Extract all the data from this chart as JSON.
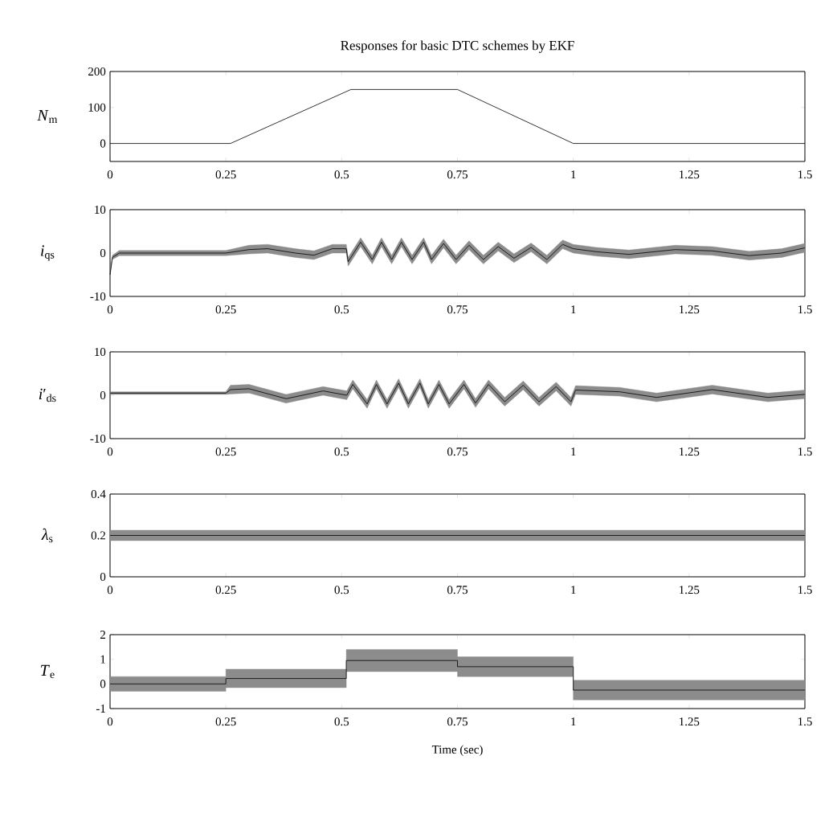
{
  "chart_data": [
    {
      "type": "line",
      "title": "Responses for basic DTC schemes by EKF",
      "ylabel": "*N*$_{m}$",
      "xlim": [
        0,
        1.5
      ],
      "xticks": [
        0,
        0.25,
        0.5,
        0.75,
        1,
        1.25,
        1.5
      ],
      "ylim": [
        -50,
        200
      ],
      "yticks": [
        0,
        100,
        200
      ],
      "x": [
        0,
        0.26,
        0.52,
        0.75,
        1.0,
        1.5
      ],
      "series": [
        {
          "color": "#000000",
          "values": [
            0,
            0,
            150,
            150,
            0,
            0
          ]
        }
      ]
    },
    {
      "type": "line",
      "ylabel": "*i*$_{qs}$",
      "xlim": [
        0,
        1.5
      ],
      "xticks": [
        0,
        0.25,
        0.5,
        0.75,
        1,
        1.25,
        1.5
      ],
      "ylim": [
        -10,
        10
      ],
      "yticks": [
        -10,
        0,
        10
      ],
      "x": [
        0,
        0.005,
        0.02,
        0.25,
        0.3,
        0.34,
        0.4,
        0.44,
        0.48,
        0.51,
        0.514,
        0.541,
        0.566,
        0.586,
        0.608,
        0.629,
        0.652,
        0.677,
        0.694,
        0.72,
        0.747,
        0.775,
        0.806,
        0.838,
        0.872,
        0.909,
        0.943,
        0.977,
        1.0,
        1.05,
        1.12,
        1.22,
        1.3,
        1.38,
        1.45,
        1.5
      ],
      "series": [
        {
          "color": "#000000",
          "values": [
            -5,
            -1,
            0,
            0,
            0.8,
            1,
            0,
            -0.5,
            1,
            1,
            -2,
            2.5,
            -1.5,
            2.5,
            -1.5,
            2.5,
            -1.5,
            2.5,
            -1.5,
            2.2,
            -1.5,
            1.8,
            -1.5,
            1.5,
            -1.2,
            1.3,
            -1.5,
            2,
            1,
            0.3,
            -0.3,
            0.8,
            0.5,
            -0.6,
            0,
            1.2
          ],
          "lower": [
            -5,
            -1.5,
            -0.6,
            -0.6,
            -0.2,
            0,
            -1,
            -1.5,
            0,
            0,
            -3,
            1.5,
            -2.5,
            1.5,
            -2.5,
            1.5,
            -2.5,
            1.5,
            -2.5,
            1.2,
            -2.5,
            0.8,
            -2.5,
            0.5,
            -2.2,
            0.3,
            -2.5,
            1,
            0,
            -0.7,
            -1.3,
            -0.2,
            -0.5,
            -1.6,
            -1,
            0.2
          ],
          "upper": [
            -5,
            -0.5,
            0.6,
            0.6,
            1.8,
            2,
            1,
            0.5,
            2,
            2,
            -1,
            3.5,
            -0.5,
            3.5,
            -0.5,
            3.5,
            -0.5,
            3.5,
            -0.5,
            3.2,
            -0.5,
            2.8,
            -0.5,
            2.5,
            -0.2,
            2.3,
            -0.5,
            3,
            2,
            1.3,
            0.7,
            1.8,
            1.5,
            0.4,
            1,
            2.2
          ]
        }
      ]
    },
    {
      "type": "line",
      "ylabel": "*i*′$_{ds}$",
      "xlim": [
        0,
        1.5
      ],
      "xticks": [
        0,
        0.25,
        0.5,
        0.75,
        1,
        1.25,
        1.5
      ],
      "ylim": [
        -10,
        10
      ],
      "yticks": [
        -10,
        0,
        10
      ],
      "x": [
        0,
        0.25,
        0.26,
        0.3,
        0.38,
        0.46,
        0.511,
        0.524,
        0.555,
        0.575,
        0.598,
        0.623,
        0.644,
        0.669,
        0.687,
        0.71,
        0.732,
        0.764,
        0.789,
        0.817,
        0.852,
        0.892,
        0.926,
        0.963,
        0.995,
        1.005,
        1.1,
        1.18,
        1.3,
        1.42,
        1.5
      ],
      "series": [
        {
          "color": "#000000",
          "values": [
            0.5,
            0.5,
            1.3,
            1.5,
            -0.8,
            1,
            0,
            2.5,
            -2,
            2.5,
            -2,
            2.8,
            -2,
            2.8,
            -2,
            2.5,
            -2,
            2.5,
            -1.8,
            2.5,
            -1.5,
            2.3,
            -1.5,
            2,
            -1.5,
            1.2,
            0.8,
            -0.5,
            1.3,
            -0.5,
            0.2
          ],
          "lower": [
            0.2,
            0.2,
            0.3,
            0.5,
            -1.8,
            0,
            -1,
            1.5,
            -3,
            1.5,
            -3,
            1.8,
            -3,
            1.8,
            -3,
            1.5,
            -3,
            1.5,
            -2.8,
            1.5,
            -2.5,
            1.3,
            -2.5,
            1,
            -2.5,
            0.2,
            -0.2,
            -1.5,
            0.3,
            -1.5,
            -0.8
          ],
          "upper": [
            0.8,
            0.8,
            2.3,
            2.5,
            0.2,
            2,
            1,
            3.5,
            -1,
            3.5,
            -1,
            3.8,
            -1,
            3.8,
            -1,
            3.5,
            -1,
            3.5,
            -0.8,
            3.5,
            -0.5,
            3.3,
            -0.5,
            3,
            -0.5,
            2.2,
            1.8,
            0.5,
            2.3,
            0.5,
            1.2
          ]
        }
      ]
    },
    {
      "type": "line",
      "ylabel": "*λ*$_{s}$",
      "xlim": [
        0,
        1.5
      ],
      "xticks": [
        0,
        0.25,
        0.5,
        0.75,
        1,
        1.25,
        1.5
      ],
      "ylim": [
        0,
        0.4
      ],
      "yticks": [
        0,
        0.2,
        0.4
      ],
      "x": [
        0,
        1.5
      ],
      "series": [
        {
          "color": "#000000",
          "values": [
            0.2,
            0.2
          ],
          "lower": [
            0.175,
            0.175
          ],
          "upper": [
            0.225,
            0.225
          ]
        }
      ]
    },
    {
      "type": "line",
      "ylabel": "*T*$_{e}$",
      "xlabel": "Time (sec)",
      "xlim": [
        0,
        1.5
      ],
      "xticks": [
        0,
        0.25,
        0.5,
        0.75,
        1,
        1.25,
        1.5
      ],
      "ylim": [
        -1,
        2
      ],
      "yticks": [
        -1,
        0,
        1,
        2
      ],
      "x": [
        0,
        0.25,
        0.25,
        0.51,
        0.51,
        0.75,
        0.75,
        1.0,
        1.0,
        1.5
      ],
      "series": [
        {
          "color": "#000000",
          "values": [
            0,
            0,
            0.22,
            0.22,
            0.95,
            0.95,
            0.7,
            0.7,
            -0.25,
            -0.25
          ],
          "lower": [
            -0.3,
            -0.3,
            -0.15,
            -0.15,
            0.5,
            0.5,
            0.3,
            0.3,
            -0.65,
            -0.65
          ],
          "upper": [
            0.3,
            0.3,
            0.6,
            0.6,
            1.4,
            1.4,
            1.1,
            1.1,
            0.15,
            0.15
          ]
        }
      ]
    }
  ]
}
